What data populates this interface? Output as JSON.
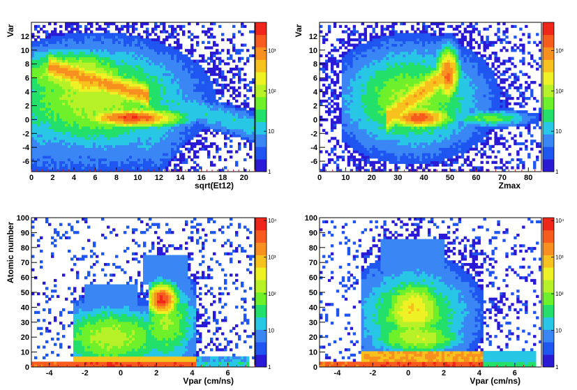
{
  "chart_data": [
    {
      "type": "heatmap",
      "xlabel": "sqrt(Et12)",
      "ylabel": "Var",
      "xlim": [
        0,
        21
      ],
      "ylim": [
        -7.5,
        14
      ],
      "xticks": [
        "0",
        "2",
        "4",
        "6",
        "8",
        "10",
        "12",
        "14",
        "16",
        "18",
        "20"
      ],
      "yticks": [
        "-6",
        "-4",
        "-2",
        "0",
        "2",
        "4",
        "6",
        "8",
        "10",
        "12"
      ],
      "ztick_labels": [
        "1",
        "10",
        "10²",
        "10³"
      ],
      "zlim": [
        1,
        5000
      ],
      "shape": "var_vs_sqrt"
    },
    {
      "type": "heatmap",
      "xlabel": "Zmax",
      "ylabel": "Var",
      "xlim": [
        0,
        85
      ],
      "ylim": [
        -7.5,
        14
      ],
      "xticks": [
        "0",
        "10",
        "20",
        "30",
        "40",
        "50",
        "60",
        "70",
        "80"
      ],
      "yticks": [
        "-6",
        "-4",
        "-2",
        "0",
        "2",
        "4",
        "6",
        "8",
        "10",
        "12"
      ],
      "ztick_labels": [
        "1",
        "10",
        "10²",
        "10³"
      ],
      "zlim": [
        1,
        5000
      ],
      "shape": "var_vs_zmax"
    },
    {
      "type": "heatmap",
      "xlabel": "Vpar (cm/ns)",
      "ylabel": "Atomic number",
      "xlim": [
        -5,
        7.5
      ],
      "ylim": [
        0,
        100
      ],
      "xticks": [
        "-4",
        "-2",
        "0",
        "2",
        "4",
        "6"
      ],
      "yticks": [
        "0",
        "10",
        "20",
        "30",
        "40",
        "50",
        "60",
        "70",
        "80",
        "90",
        "100"
      ],
      "ztick_labels": [
        "1",
        "10",
        "10²",
        "10³",
        "10⁴"
      ],
      "zlim": [
        1,
        12000
      ],
      "shape": "z_vs_vpar_a"
    },
    {
      "type": "heatmap",
      "xlabel": "Vpar (cm/ns)",
      "ylabel": "",
      "xlim": [
        -5,
        7.5
      ],
      "ylim": [
        0,
        100
      ],
      "xticks": [
        "-4",
        "-2",
        "0",
        "2",
        "4",
        "6"
      ],
      "yticks": [
        "0",
        "10",
        "20",
        "30",
        "40",
        "50",
        "60",
        "70",
        "80",
        "90",
        "100"
      ],
      "ztick_labels": [
        "1",
        "10",
        "10²",
        "10³",
        "10⁴"
      ],
      "zlim": [
        1,
        12000
      ],
      "shape": "z_vs_vpar_b"
    }
  ],
  "colors": {
    "palette": [
      "#2a1ad6",
      "#1f55f0",
      "#3a86f5",
      "#27c7e5",
      "#22e06a",
      "#6ef02a",
      "#b6f227",
      "#eef225",
      "#f7c21e",
      "#f7901e",
      "#f75c1e",
      "#f0261a"
    ],
    "axis": "#000000",
    "tick_red": "#c01818"
  }
}
